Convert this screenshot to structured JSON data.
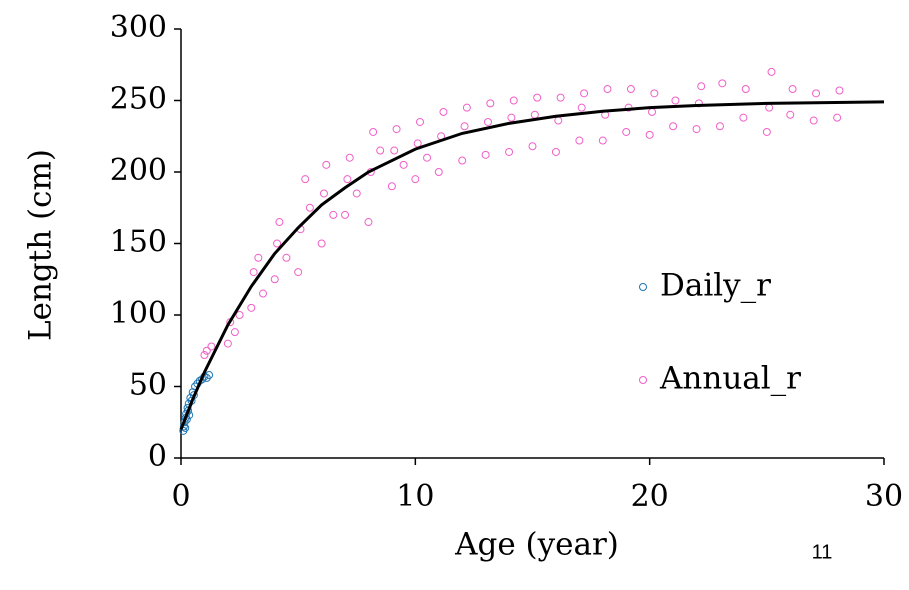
{
  "chart_data": {
    "type": "scatter",
    "xlabel": "Age (year)",
    "ylabel": "Length (cm)",
    "xlim": [
      0,
      30
    ],
    "xticks": [
      0,
      10,
      20,
      30
    ],
    "ylim": [
      0,
      300
    ],
    "yticks": [
      0,
      50,
      100,
      150,
      200,
      250,
      300
    ],
    "grid": false,
    "legend": "right",
    "series": [
      {
        "name": "Daily_r",
        "color": "#1f77b4",
        "x": [
          0.1,
          0.12,
          0.15,
          0.18,
          0.2,
          0.22,
          0.25,
          0.28,
          0.3,
          0.33,
          0.35,
          0.4,
          0.45,
          0.5,
          0.55,
          0.6,
          0.7,
          0.8,
          0.9,
          1.0,
          1.1,
          1.2
        ],
        "values": [
          19,
          22,
          25,
          21,
          28,
          31,
          27,
          35,
          33,
          38,
          30,
          42,
          40,
          46,
          44,
          50,
          52,
          54,
          55,
          57,
          56,
          58
        ]
      },
      {
        "name": "Annual_r",
        "color": "#f060c8",
        "x": [
          1,
          1.1,
          1.3,
          2,
          2.1,
          2.3,
          2.5,
          3,
          3.1,
          3.3,
          3.5,
          4,
          4.1,
          4.2,
          4.5,
          5,
          5.1,
          5.3,
          5.5,
          6,
          6.1,
          6.2,
          6.5,
          7,
          7.1,
          7.2,
          7.5,
          8,
          8.1,
          8.2,
          8.5,
          9,
          9.1,
          9.2,
          9.5,
          10,
          10.1,
          10.2,
          10.5,
          11,
          11.1,
          11.2,
          12,
          12.1,
          12.2,
          13,
          13.1,
          13.2,
          14,
          14.1,
          14.2,
          15,
          15.1,
          15.2,
          16,
          16.1,
          16.2,
          17,
          17.1,
          17.2,
          18,
          18.1,
          18.2,
          19,
          19.1,
          19.2,
          20,
          20.1,
          20.2,
          21,
          21.1,
          22,
          22.1,
          22.2,
          23,
          23.1,
          24,
          24.1,
          25,
          25.1,
          25.2,
          26,
          26.1,
          27,
          27.1,
          28,
          28.1
        ],
        "values": [
          72,
          75,
          78,
          80,
          95,
          88,
          100,
          105,
          130,
          140,
          115,
          125,
          150,
          165,
          140,
          130,
          160,
          195,
          175,
          150,
          185,
          205,
          170,
          170,
          195,
          210,
          185,
          165,
          200,
          228,
          215,
          190,
          215,
          230,
          205,
          195,
          220,
          235,
          210,
          200,
          225,
          242,
          208,
          232,
          245,
          212,
          235,
          248,
          214,
          238,
          250,
          218,
          240,
          252,
          214,
          236,
          252,
          222,
          245,
          255,
          222,
          240,
          258,
          228,
          245,
          258,
          226,
          242,
          255,
          232,
          250,
          230,
          248,
          260,
          232,
          262,
          238,
          258,
          228,
          245,
          270,
          240,
          258,
          236,
          255,
          238,
          257
        ]
      },
      {
        "color": "#000000",
        "line": true,
        "x": [
          0,
          0.5,
          1,
          2,
          3,
          4,
          5,
          6,
          7,
          8,
          10,
          12,
          14,
          16,
          18,
          20,
          22,
          25,
          30
        ],
        "values": [
          20,
          41,
          60,
          93,
          120,
          143,
          161,
          177,
          189,
          200,
          216,
          227,
          234,
          239,
          242.5,
          245,
          246.5,
          248,
          249
        ]
      }
    ]
  },
  "page_number": "11"
}
